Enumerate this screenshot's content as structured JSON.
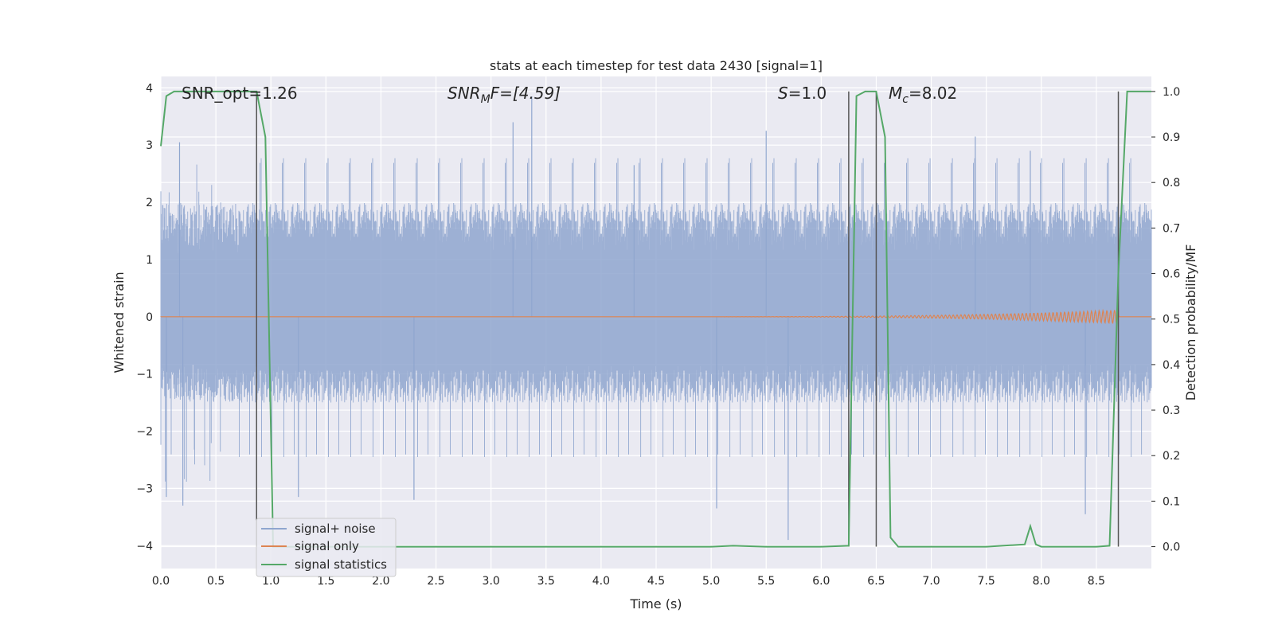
{
  "chart_data": {
    "type": "line",
    "title": "stats at each timestep for test data 2430 [signal=1]",
    "xlabel": "Time (s)",
    "ylabel": "Whitened strain",
    "y2label": "Detection probability/MF",
    "xlim": [
      0.0,
      9.0
    ],
    "ylim": [
      -4.4,
      4.2
    ],
    "y2lim": [
      -0.048,
      1.033
    ],
    "xticks": [
      "0.0",
      "0.5",
      "1.0",
      "1.5",
      "2.0",
      "2.5",
      "3.0",
      "3.5",
      "4.0",
      "4.5",
      "5.0",
      "5.5",
      "6.0",
      "6.5",
      "7.0",
      "7.5",
      "8.0",
      "8.5"
    ],
    "yticks": [
      "4",
      "3",
      "2",
      "1",
      "0",
      "−1",
      "−2",
      "−3",
      "−4"
    ],
    "y2ticks": [
      "1.0",
      "0.9",
      "0.8",
      "0.7",
      "0.6",
      "0.5",
      "0.4",
      "0.3",
      "0.2",
      "0.1",
      "0.0"
    ],
    "grid": true,
    "legend_position": "lower-left",
    "annotations": {
      "snr_opt": "SNR_opt=1.26",
      "snr_mf_base": "SNR",
      "snr_mf_sub": "M",
      "snr_mf_rest": "F=[4.59]",
      "s_italic": "S",
      "s_rest": "=1.0",
      "mc_base": "M",
      "mc_sub": "c",
      "mc_rest": "=8.02"
    },
    "vertical_lines_x": [
      0.87,
      6.25,
      6.5,
      8.7
    ],
    "series": [
      {
        "name": "signal+ noise",
        "color": "#8fa6cf",
        "description_stats": {
          "envelope_min": -3.9,
          "envelope_max": 3.9,
          "typical_band": [
            -1.5,
            2.0
          ]
        },
        "notable_spikes": [
          {
            "x": 0.17,
            "y": 3.05
          },
          {
            "x": 0.2,
            "y": -3.3
          },
          {
            "x": 0.05,
            "y": -3.15
          },
          {
            "x": 1.25,
            "y": -3.15
          },
          {
            "x": 2.3,
            "y": -3.2
          },
          {
            "x": 3.2,
            "y": 3.4
          },
          {
            "x": 3.37,
            "y": 3.85
          },
          {
            "x": 4.3,
            "y": 2.65
          },
          {
            "x": 5.05,
            "y": -3.35
          },
          {
            "x": 5.5,
            "y": 3.25
          },
          {
            "x": 5.7,
            "y": -3.9
          },
          {
            "x": 8.4,
            "y": -3.45
          },
          {
            "x": 7.4,
            "y": 3.15
          },
          {
            "x": 7.9,
            "y": 2.9
          }
        ]
      },
      {
        "name": "signal only",
        "color": "#dd8452",
        "description_stats": {
          "value_near": 0,
          "max_amplitude": 0.12,
          "chirp_end_x": 8.7
        }
      },
      {
        "name": "signal statistics",
        "color": "#55a868",
        "axis": "right",
        "x": [
          0.0,
          0.05,
          0.12,
          0.3,
          0.5,
          0.65,
          0.87,
          0.95,
          1.02,
          2.0,
          3.0,
          4.0,
          5.0,
          5.2,
          5.5,
          6.0,
          6.25,
          6.32,
          6.4,
          6.5,
          6.58,
          6.63,
          6.7,
          7.0,
          7.5,
          7.85,
          7.9,
          7.95,
          8.0,
          8.5,
          8.62,
          8.7,
          8.78,
          8.85,
          8.95,
          9.0
        ],
        "y": [
          0.88,
          0.99,
          1.0,
          1.0,
          1.0,
          1.0,
          1.0,
          0.9,
          0.0,
          0.0,
          0.0,
          0.0,
          0.0,
          0.002,
          0.0,
          0.0,
          0.002,
          0.99,
          1.0,
          1.0,
          0.9,
          0.02,
          0.0,
          0.0,
          0.0,
          0.005,
          0.045,
          0.005,
          0.0,
          0.0,
          0.002,
          0.6,
          1.0,
          1.0,
          1.0,
          1.0
        ]
      }
    ]
  }
}
